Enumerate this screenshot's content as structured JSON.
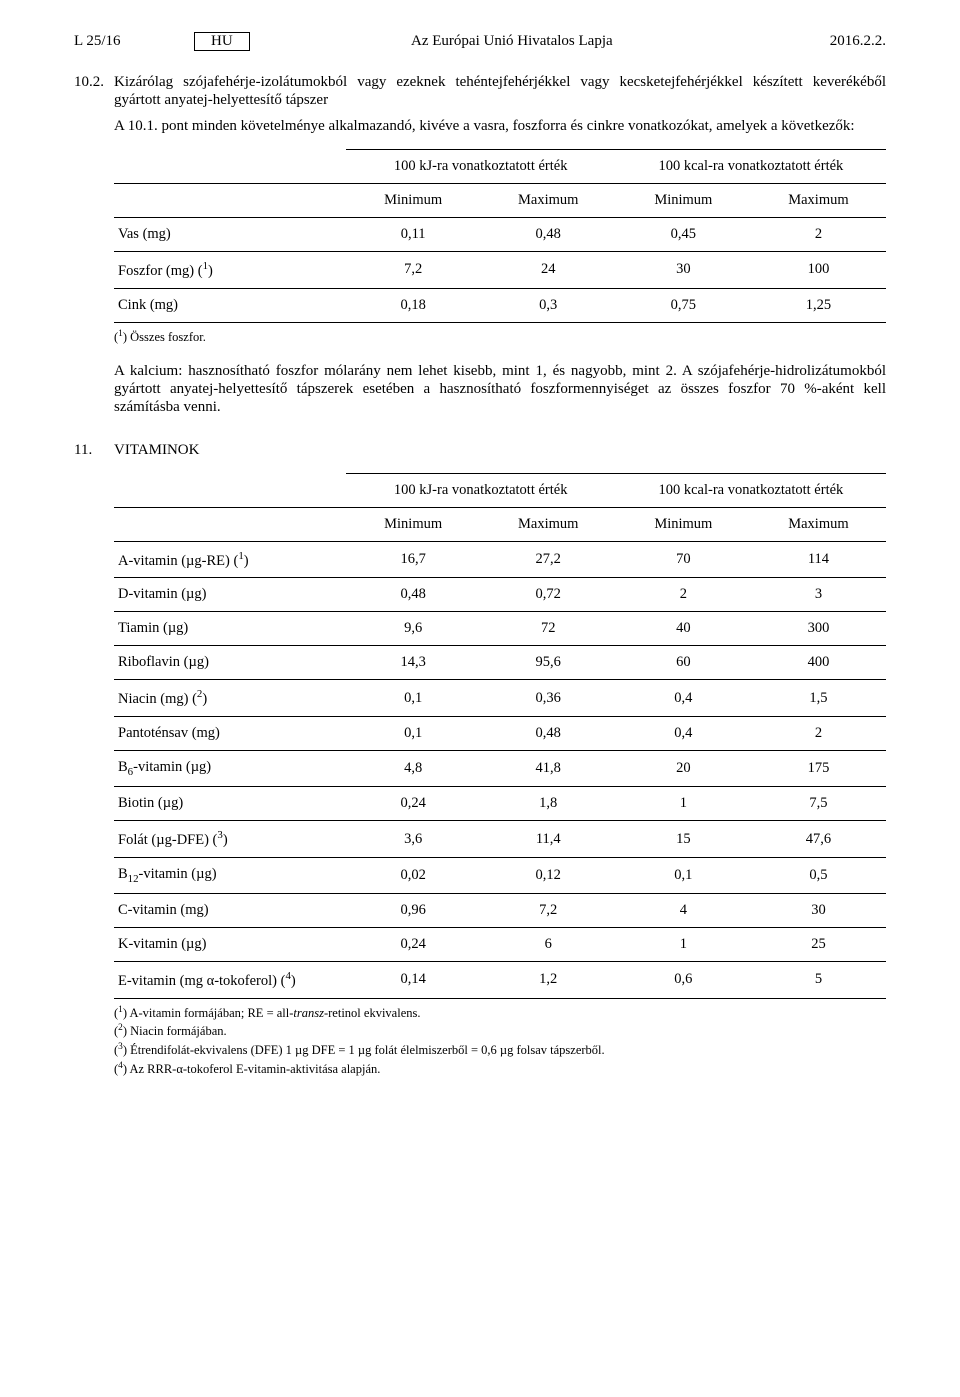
{
  "header": {
    "left": "L 25/16",
    "lang": "HU",
    "center": "Az Európai Unió Hivatalos Lapja",
    "right": "2016.2.2."
  },
  "section10_2": {
    "number": "10.2.",
    "text": "Kizárólag szójafehérje-izolátumokból vagy ezeknek tehéntejfehérjékkel vagy kecsketejfehérjékkel készített keverékéből gyártott anyatej-helyettesítő tápszer",
    "sub": "A 10.1. pont minden követelménye alkalmazandó, kivéve a vasra, foszforra és cinkre vonatkozókat, amelyek a következők:"
  },
  "table1": {
    "head_kj": "100 kJ-ra vonatkoztatott érték",
    "head_kcal": "100 kcal-ra vonatkoztatott érték",
    "min": "Minimum",
    "max": "Maximum",
    "rows": [
      {
        "label": "Vas (mg)",
        "a": "0,11",
        "b": "0,48",
        "c": "0,45",
        "d": "2"
      },
      {
        "label_html": "Foszfor (mg) (<span class='sup'>1</span>)",
        "a": "7,2",
        "b": "24",
        "c": "30",
        "d": "100"
      },
      {
        "label": "Cink (mg)",
        "a": "0,18",
        "b": "0,3",
        "c": "0,75",
        "d": "1,25"
      }
    ],
    "footnote_html": "(<span class='sup'>1</span>)  Összes foszfor."
  },
  "para_after_t1": "A kalcium: hasznosítható foszfor mólarány nem lehet kisebb, mint 1, és nagyobb, mint 2. A szójafehérje-hidrolizátumokból gyártott anyatej-helyettesítő tápszerek esetében a hasznosítható foszformennyiséget az összes foszfor 70 %-aként kell számításba venni.",
  "section11": {
    "number": "11.",
    "title": "VITAMINOK"
  },
  "table2": {
    "head_kj": "100 kJ-ra vonatkoztatott érték",
    "head_kcal": "100 kcal-ra vonatkoztatott érték",
    "min": "Minimum",
    "max": "Maximum",
    "rows": [
      {
        "label_html": "A-vitamin (µg-RE) (<span class='sup'>1</span>)",
        "a": "16,7",
        "b": "27,2",
        "c": "70",
        "d": "114"
      },
      {
        "label": "D-vitamin (µg)",
        "a": "0,48",
        "b": "0,72",
        "c": "2",
        "d": "3"
      },
      {
        "label": "Tiamin (µg)",
        "a": "9,6",
        "b": "72",
        "c": "40",
        "d": "300"
      },
      {
        "label": "Riboflavin (µg)",
        "a": "14,3",
        "b": "95,6",
        "c": "60",
        "d": "400"
      },
      {
        "label_html": "Niacin (mg) (<span class='sup'>2</span>)",
        "a": "0,1",
        "b": "0,36",
        "c": "0,4",
        "d": "1,5"
      },
      {
        "label": "Pantoténsav (mg)",
        "a": "0,1",
        "b": "0,48",
        "c": "0,4",
        "d": "2"
      },
      {
        "label_html": "B<span class='sub'>6</span>-vitamin (µg)",
        "a": "4,8",
        "b": "41,8",
        "c": "20",
        "d": "175"
      },
      {
        "label": "Biotin (µg)",
        "a": "0,24",
        "b": "1,8",
        "c": "1",
        "d": "7,5"
      },
      {
        "label_html": "Folát (µg-DFE) (<span class='sup'>3</span>)",
        "a": "3,6",
        "b": "11,4",
        "c": "15",
        "d": "47,6"
      },
      {
        "label_html": "B<span class='sub'>12</span>-vitamin (µg)",
        "a": "0,02",
        "b": "0,12",
        "c": "0,1",
        "d": "0,5"
      },
      {
        "label": "C-vitamin (mg)",
        "a": "0,96",
        "b": "7,2",
        "c": "4",
        "d": "30"
      },
      {
        "label": "K-vitamin (µg)",
        "a": "0,24",
        "b": "6",
        "c": "1",
        "d": "25"
      },
      {
        "label_html": "E-vitamin (mg α-tokoferol) (<span class='sup'>4</span>)",
        "a": "0,14",
        "b": "1,2",
        "c": "0,6",
        "d": "5"
      }
    ],
    "footnotes_html": [
      "(<span class='sup'>1</span>)  A-vitamin formájában; RE = all-<span class='italic'>transz</span>-retinol ekvivalens.",
      "(<span class='sup'>2</span>)  Niacin formájában.",
      "(<span class='sup'>3</span>)  Étrendifolát-ekvivalens (DFE) 1 µg DFE = 1 µg folát élelmiszerből = 0,6 µg folsav tápszerből.",
      "(<span class='sup'>4</span>)  Az RRR-α-tokoferol E-vitamin-aktivitása alapján."
    ]
  }
}
